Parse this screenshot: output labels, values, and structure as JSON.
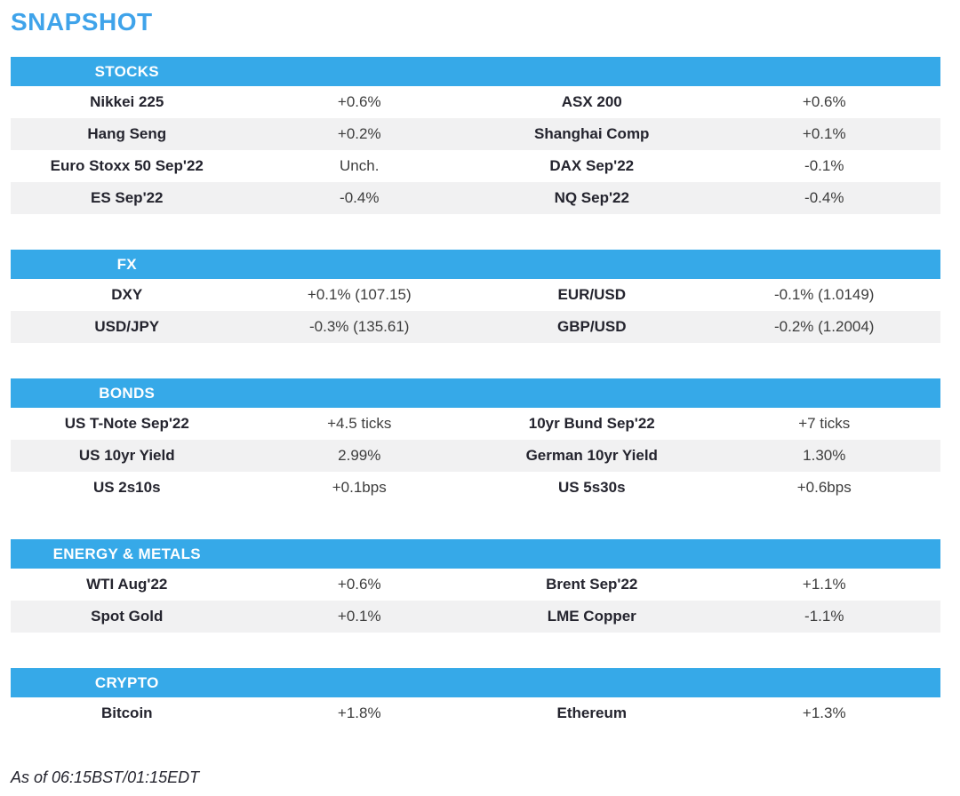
{
  "page": {
    "title": "SNAPSHOT",
    "footer": "As of 06:15BST/01:15EDT",
    "colors": {
      "accent": "#36a9e8",
      "title": "#3fa3ea",
      "header_text": "#ffffff",
      "row_alt": "#f1f1f2",
      "label_text": "#24242e",
      "value_text": "#3d3d3d",
      "background": "#ffffff"
    }
  },
  "sections": [
    {
      "title": "STOCKS",
      "rows": [
        {
          "label_left": "Nikkei 225",
          "value_left": "+0.6%",
          "label_right": "ASX 200",
          "value_right": "+0.6%"
        },
        {
          "label_left": "Hang Seng",
          "value_left": "+0.2%",
          "label_right": "Shanghai Comp",
          "value_right": "+0.1%"
        },
        {
          "label_left": "Euro Stoxx 50 Sep'22",
          "value_left": "Unch.",
          "label_right": "DAX Sep'22",
          "value_right": "-0.1%"
        },
        {
          "label_left": "ES Sep'22",
          "value_left": "-0.4%",
          "label_right": "NQ Sep'22",
          "value_right": "-0.4%"
        }
      ]
    },
    {
      "title": "FX",
      "rows": [
        {
          "label_left": "DXY",
          "value_left": "+0.1% (107.15)",
          "label_right": "EUR/USD",
          "value_right": "-0.1% (1.0149)"
        },
        {
          "label_left": "USD/JPY",
          "value_left": "-0.3% (135.61)",
          "label_right": "GBP/USD",
          "value_right": "-0.2% (1.2004)"
        }
      ]
    },
    {
      "title": "BONDS",
      "rows": [
        {
          "label_left": "US T-Note Sep'22",
          "value_left": "+4.5 ticks",
          "label_right": "10yr Bund Sep'22",
          "value_right": "+7 ticks"
        },
        {
          "label_left": "US 10yr Yield",
          "value_left": "2.99%",
          "label_right": "German 10yr Yield",
          "value_right": "1.30%"
        },
        {
          "label_left": "US 2s10s",
          "value_left": "+0.1bps",
          "label_right": "US 5s30s",
          "value_right": "+0.6bps"
        }
      ]
    },
    {
      "title": "ENERGY & METALS",
      "rows": [
        {
          "label_left": "WTI Aug'22",
          "value_left": "+0.6%",
          "label_right": "Brent Sep'22",
          "value_right": "+1.1%"
        },
        {
          "label_left": "Spot Gold",
          "value_left": "+0.1%",
          "label_right": "LME Copper",
          "value_right": "-1.1%"
        }
      ]
    },
    {
      "title": "CRYPTO",
      "rows": [
        {
          "label_left": "Bitcoin",
          "value_left": "+1.8%",
          "label_right": "Ethereum",
          "value_right": "+1.3%"
        }
      ]
    }
  ]
}
